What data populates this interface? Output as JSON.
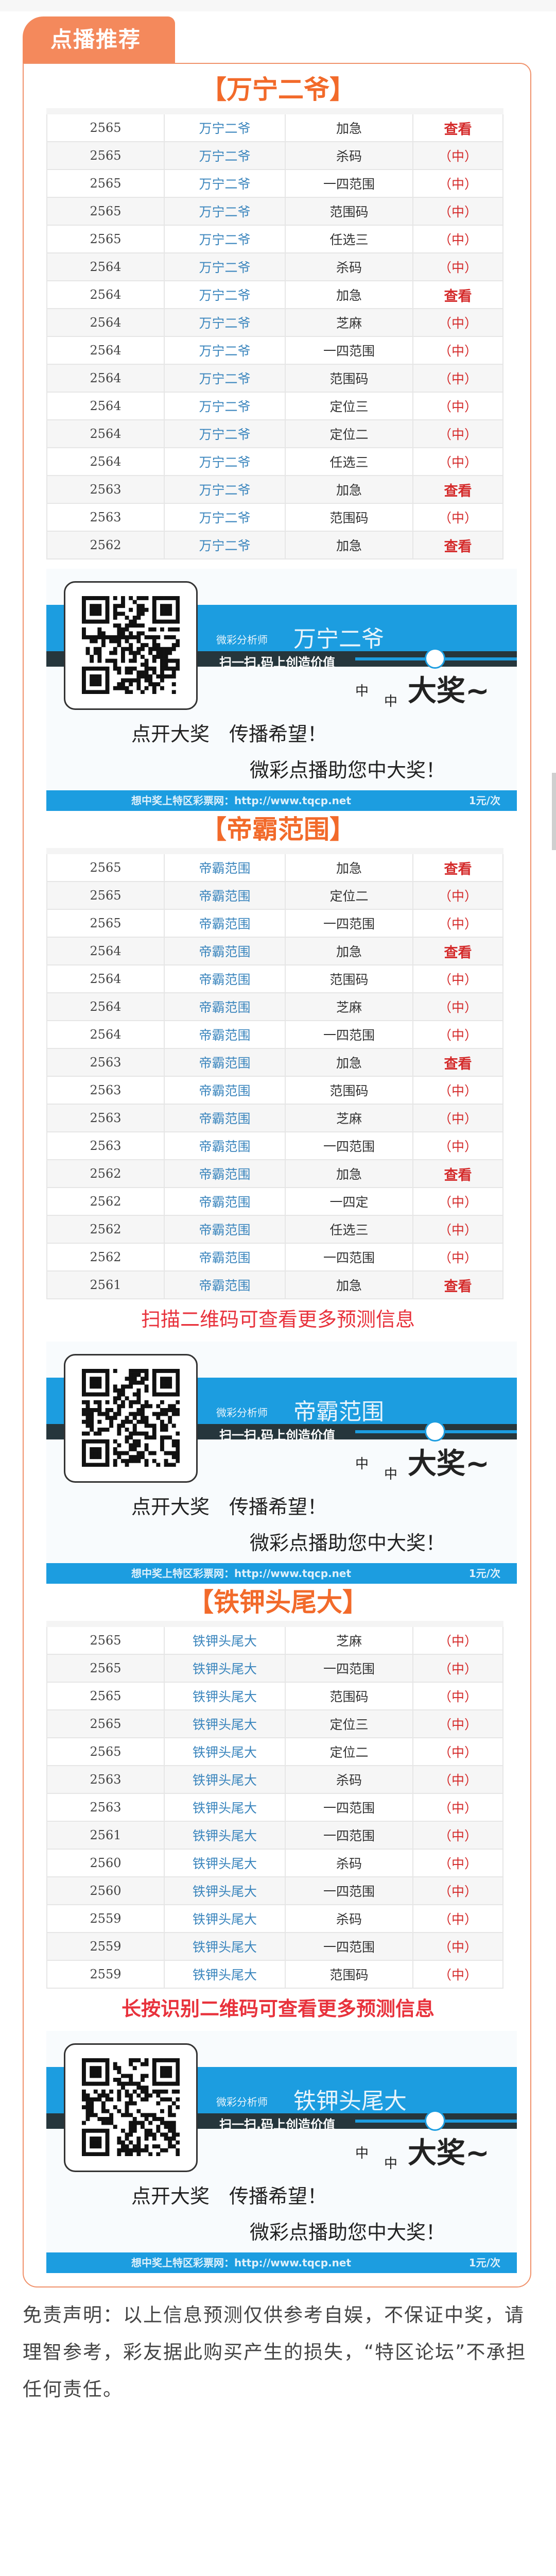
{
  "tab_label": "点播推荐",
  "colors": {
    "accent": "#f26a2a",
    "tab": "#f4895c",
    "link_blue": "#3a85bd",
    "result_red": "#d42a2a",
    "banner_blue": "#1c9de0"
  },
  "sections": [
    {
      "title": "【万宁二爷】",
      "rows": [
        [
          "2565",
          "万宁二爷",
          "加急",
          "查看"
        ],
        [
          "2565",
          "万宁二爷",
          "杀码",
          "（中）"
        ],
        [
          "2565",
          "万宁二爷",
          "一四范围",
          "（中）"
        ],
        [
          "2565",
          "万宁二爷",
          "范围码",
          "（中）"
        ],
        [
          "2565",
          "万宁二爷",
          "任选三",
          "（中）"
        ],
        [
          "2564",
          "万宁二爷",
          "杀码",
          "（中）"
        ],
        [
          "2564",
          "万宁二爷",
          "加急",
          "查看"
        ],
        [
          "2564",
          "万宁二爷",
          "芝麻",
          "（中）"
        ],
        [
          "2564",
          "万宁二爷",
          "一四范围",
          "（中）"
        ],
        [
          "2564",
          "万宁二爷",
          "范围码",
          "（中）"
        ],
        [
          "2564",
          "万宁二爷",
          "定位三",
          "（中）"
        ],
        [
          "2564",
          "万宁二爷",
          "定位二",
          "（中）"
        ],
        [
          "2564",
          "万宁二爷",
          "任选三",
          "（中）"
        ],
        [
          "2563",
          "万宁二爷",
          "加急",
          "查看"
        ],
        [
          "2563",
          "万宁二爷",
          "范围码",
          "（中）"
        ],
        [
          "2562",
          "万宁二爷",
          "加急",
          "查看"
        ]
      ],
      "notice": "",
      "banner": {
        "role": "微彩分析师",
        "name": "万宁二爷"
      }
    },
    {
      "title": "【帝霸范围】",
      "rows": [
        [
          "2565",
          "帝霸范围",
          "加急",
          "查看"
        ],
        [
          "2565",
          "帝霸范围",
          "定位二",
          "（中）"
        ],
        [
          "2565",
          "帝霸范围",
          "一四范围",
          "（中）"
        ],
        [
          "2564",
          "帝霸范围",
          "加急",
          "查看"
        ],
        [
          "2564",
          "帝霸范围",
          "范围码",
          "（中）"
        ],
        [
          "2564",
          "帝霸范围",
          "芝麻",
          "（中）"
        ],
        [
          "2564",
          "帝霸范围",
          "一四范围",
          "（中）"
        ],
        [
          "2563",
          "帝霸范围",
          "加急",
          "查看"
        ],
        [
          "2563",
          "帝霸范围",
          "范围码",
          "（中）"
        ],
        [
          "2563",
          "帝霸范围",
          "芝麻",
          "（中）"
        ],
        [
          "2563",
          "帝霸范围",
          "一四范围",
          "（中）"
        ],
        [
          "2562",
          "帝霸范围",
          "加急",
          "查看"
        ],
        [
          "2562",
          "帝霸范围",
          "一四定",
          "（中）"
        ],
        [
          "2562",
          "帝霸范围",
          "任选三",
          "（中）"
        ],
        [
          "2562",
          "帝霸范围",
          "一四范围",
          "（中）"
        ],
        [
          "2561",
          "帝霸范围",
          "加急",
          "查看"
        ]
      ],
      "notice": "扫描二维码可查看更多预测信息",
      "banner": {
        "role": "微彩分析师",
        "name": "帝霸范围"
      }
    },
    {
      "title": "【铁钾头尾大】",
      "rows": [
        [
          "2565",
          "铁钾头尾大",
          "芝麻",
          "（中）"
        ],
        [
          "2565",
          "铁钾头尾大",
          "一四范围",
          "（中）"
        ],
        [
          "2565",
          "铁钾头尾大",
          "范围码",
          "（中）"
        ],
        [
          "2565",
          "铁钾头尾大",
          "定位三",
          "（中）"
        ],
        [
          "2565",
          "铁钾头尾大",
          "定位二",
          "（中）"
        ],
        [
          "2563",
          "铁钾头尾大",
          "杀码",
          "（中）"
        ],
        [
          "2563",
          "铁钾头尾大",
          "一四范围",
          "（中）"
        ],
        [
          "2561",
          "铁钾头尾大",
          "一四范围",
          "（中）"
        ],
        [
          "2560",
          "铁钾头尾大",
          "杀码",
          "（中）"
        ],
        [
          "2560",
          "铁钾头尾大",
          "一四范围",
          "（中）"
        ],
        [
          "2559",
          "铁钾头尾大",
          "杀码",
          "（中）"
        ],
        [
          "2559",
          "铁钾头尾大",
          "一四范围",
          "（中）"
        ],
        [
          "2559",
          "铁钾头尾大",
          "范围码",
          "（中）"
        ]
      ],
      "notice": "长按识别二维码可查看更多预测信息",
      "banner": {
        "role": "微彩分析师",
        "name": "铁钾头尾大"
      }
    }
  ],
  "banner_common": {
    "slogan": "扫一扫,码上创造价值",
    "hand_small1": "中",
    "hand_small2": "中",
    "hand_big": "大",
    "hand_prize": "奖~",
    "line1": "点开大奖　传播希望！",
    "line2": "微彩点播助您中大奖！",
    "footer_url": "想中奖上特区彩票网：http://www.tqcp.net",
    "footer_price": "1元/次"
  },
  "disclaimer": "免责声明：以上信息预测仅供参考自娱，不保证中奖，请理智参考，彩友据此购买产生的损失，“特区论坛”不承担任何责任。"
}
